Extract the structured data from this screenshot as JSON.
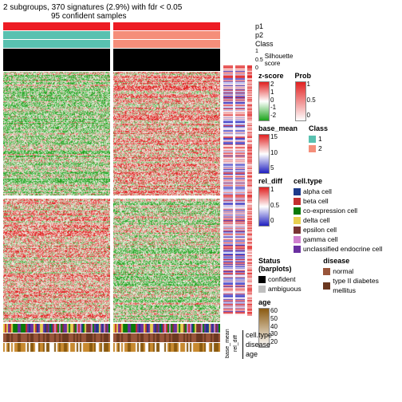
{
  "title": {
    "main": "2 subgroups, 370 signatures (2.9%) with fdr < 0.05",
    "sub": "95 confident samples"
  },
  "top_annotations": [
    {
      "name": "p1",
      "colors": [
        "#ed1c24",
        "#ed1c24"
      ]
    },
    {
      "name": "p2",
      "colors": [
        "#59c1b0",
        "#f58e7a"
      ]
    },
    {
      "name": "Class",
      "colors": [
        "#59c1b0",
        "#f58e7a"
      ]
    }
  ],
  "silhouette": {
    "label": "Silhouette\nscore",
    "ticks": [
      "1",
      "0.5",
      "0"
    ]
  },
  "row_labels": [
    "1",
    "2"
  ],
  "heatmap": {
    "palette_low": "#1ca41c",
    "palette_mid": "#f6f6ee",
    "palette_high": "#e12020",
    "panels": [
      {
        "bias": 0.35
      },
      {
        "bias": 0.65
      },
      {
        "bias": 0.62
      },
      {
        "bias": 0.4
      }
    ]
  },
  "side_strips": {
    "base_mean": {
      "low": "#2020c0",
      "mid": "#ffffff",
      "high": "#e02020"
    },
    "rel_diff": {
      "low": "#2020c0",
      "mid": "#ffffff",
      "high": "#e02020"
    },
    "prob": {
      "low": "#ffffff",
      "high": "#e02020"
    }
  },
  "bottom_strips": [
    {
      "name": "cell.type",
      "colors": [
        "#1e3a8a",
        "#c22f2f",
        "#087a08",
        "#e8d050",
        "#7a3434",
        "#d080d0",
        "#6a2fa0"
      ],
      "bg": "#1e3a8a"
    },
    {
      "name": "disease",
      "colors": [
        "#99553a",
        "#6b3820"
      ],
      "bg": "#99553a"
    },
    {
      "name": "age",
      "colors": [
        "#ffffff",
        "#c88a30",
        "#8a5a10"
      ],
      "bg": "#ffffff"
    }
  ],
  "bottom_vert_labels": [
    "base_mean",
    "rel_diff"
  ],
  "legends": {
    "zscore": {
      "title": "z-score",
      "ticks": [
        "2",
        "1",
        "0",
        "-1",
        "-2"
      ],
      "low": "#1ca41c",
      "mid": "#ffffff",
      "high": "#e12020"
    },
    "prob": {
      "title": "Prob",
      "ticks": [
        "1",
        "0.5",
        "0"
      ],
      "low": "#ffffff",
      "high": "#e12020"
    },
    "basemean": {
      "title": "base_mean",
      "ticks": [
        "15",
        "10",
        "5"
      ],
      "low": "#2020c0",
      "mid": "#ffffff",
      "high": "#e02020"
    },
    "class": {
      "title": "Class",
      "items": [
        {
          "label": "1",
          "color": "#59c1b0"
        },
        {
          "label": "2",
          "color": "#f58e7a"
        }
      ]
    },
    "reldiff": {
      "title": "rel_diff",
      "ticks": [
        "1",
        "0.5",
        "0"
      ],
      "low": "#2020c0",
      "mid": "#ffffff",
      "high": "#e02020"
    },
    "celltype": {
      "title": "cell.type",
      "items": [
        {
          "label": "alpha cell",
          "color": "#1e3a8a"
        },
        {
          "label": "beta cell",
          "color": "#c22f2f"
        },
        {
          "label": "co-expression cell",
          "color": "#087a08"
        },
        {
          "label": "delta cell",
          "color": "#e8d050"
        },
        {
          "label": "epsilon cell",
          "color": "#7a3434"
        },
        {
          "label": "gamma cell",
          "color": "#d080d0"
        },
        {
          "label": "unclassified endocrine cell",
          "color": "#6a2fa0"
        }
      ]
    },
    "status": {
      "title": "Status (barplots)",
      "items": [
        {
          "label": "confident",
          "color": "#000000"
        },
        {
          "label": "ambiguous",
          "color": "#bfbfbf"
        }
      ]
    },
    "disease": {
      "title": "disease",
      "items": [
        {
          "label": "normal",
          "color": "#99553a"
        },
        {
          "label": "type II diabetes mellitus",
          "color": "#6b3820"
        }
      ]
    },
    "age": {
      "title": "age",
      "ticks": [
        "60",
        "50",
        "40",
        "30",
        "20"
      ],
      "low": "#ffffff",
      "high": "#8a5a10"
    }
  }
}
